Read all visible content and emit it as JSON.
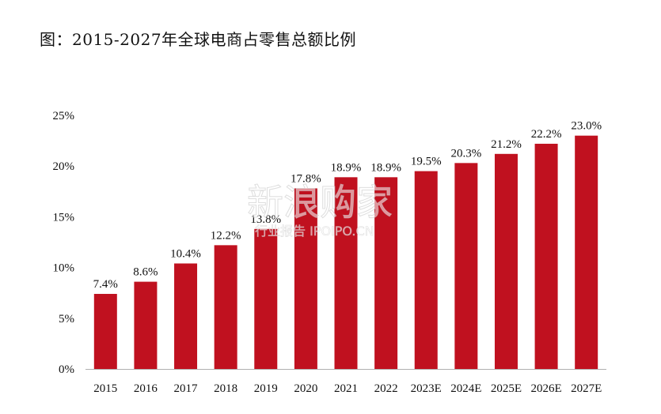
{
  "title": "图：2015-2027年全球电商占零售总额比例",
  "watermark": {
    "line1": "新浪购家",
    "line2": "行业报告 IPOIPO.CN"
  },
  "chart_data": {
    "type": "bar",
    "title": "图：2015-2027年全球电商占零售总额比例",
    "xlabel": "",
    "ylabel": "",
    "categories": [
      "2015",
      "2016",
      "2017",
      "2018",
      "2019",
      "2020",
      "2021",
      "2022",
      "2023E",
      "2024E",
      "2025E",
      "2026E",
      "2027E"
    ],
    "values": [
      7.4,
      8.6,
      10.4,
      12.2,
      13.8,
      17.8,
      18.9,
      18.9,
      19.5,
      20.3,
      21.2,
      22.2,
      23.0
    ],
    "data_labels": [
      "7.4%",
      "8.6%",
      "10.4%",
      "12.2%",
      "13.8%",
      "17.8%",
      "18.9%",
      "18.9%",
      "19.5%",
      "20.3%",
      "21.2%",
      "22.2%",
      "23.0%"
    ],
    "ylim": [
      0,
      25
    ],
    "yticks": [
      0,
      5,
      10,
      15,
      20,
      25
    ],
    "ytick_labels": [
      "0%",
      "5%",
      "10%",
      "15%",
      "20%",
      "25%"
    ],
    "bar_color": "#c0111f",
    "grid": false,
    "legend": "none"
  }
}
